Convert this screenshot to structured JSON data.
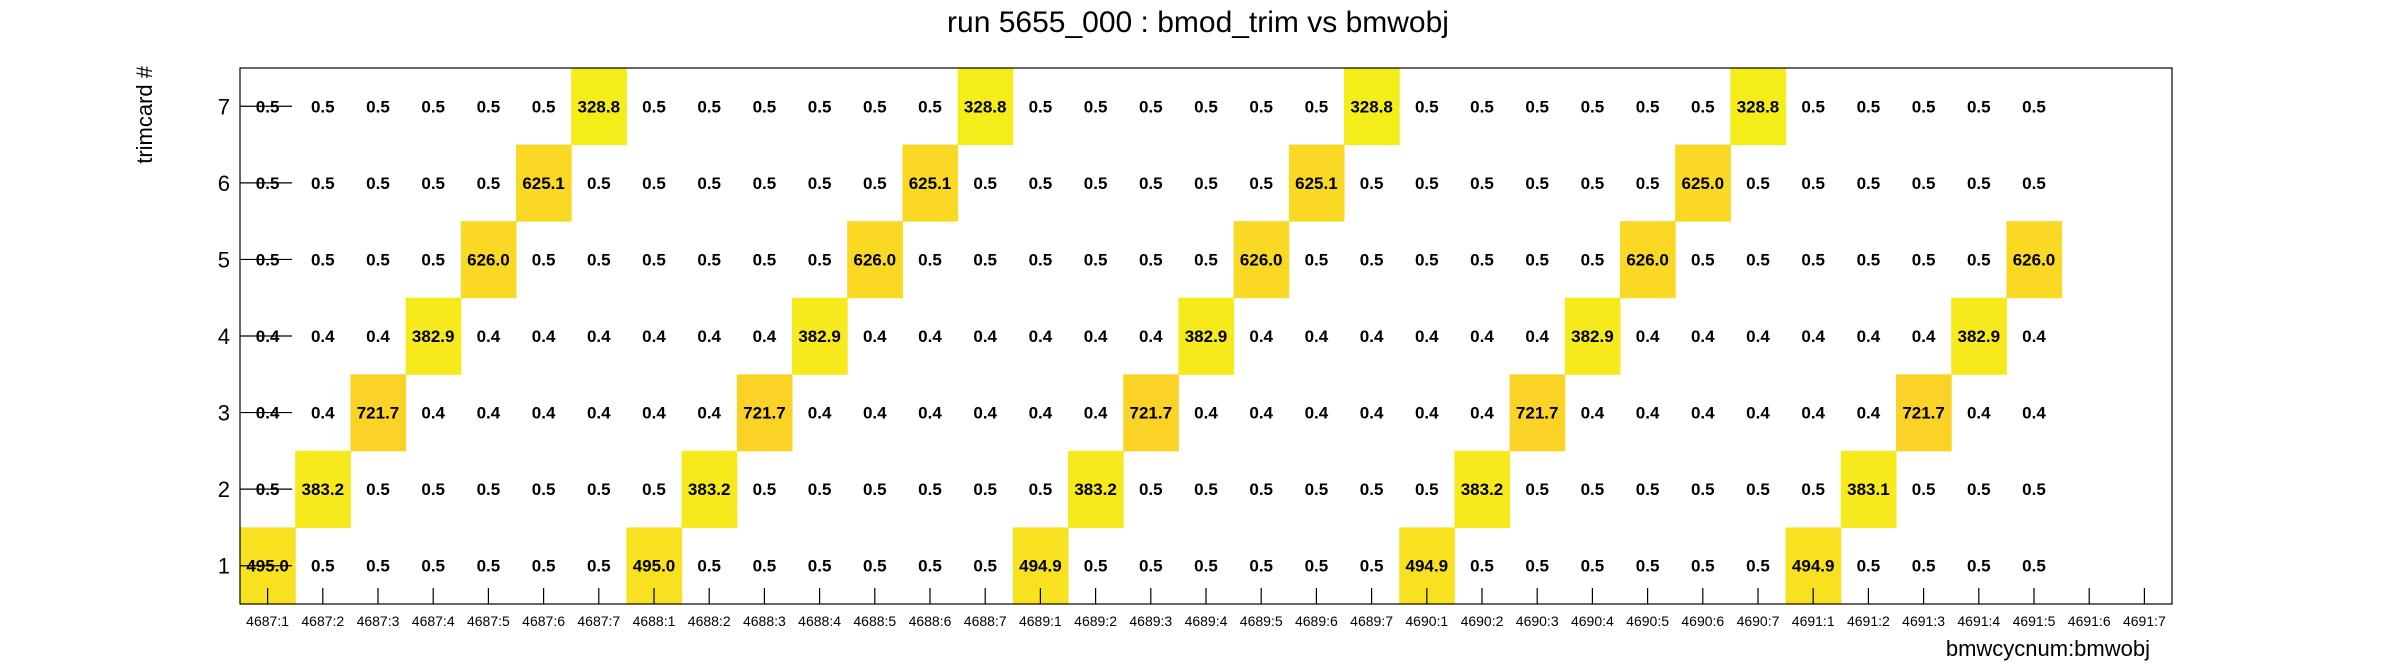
{
  "chart_data": {
    "type": "heatmap",
    "title": "run 5655_000 : bmod_trim vs bmwobj",
    "xlabel": "bmwcycnum:bmwobj",
    "ylabel": "trimcard #",
    "x_categories": [
      "4687:1",
      "4687:2",
      "4687:3",
      "4687:4",
      "4687:5",
      "4687:6",
      "4687:7",
      "4688:1",
      "4688:2",
      "4688:3",
      "4688:4",
      "4688:5",
      "4688:6",
      "4688:7",
      "4689:1",
      "4689:2",
      "4689:3",
      "4689:4",
      "4689:5",
      "4689:6",
      "4689:7",
      "4690:1",
      "4690:2",
      "4690:3",
      "4690:4",
      "4690:5",
      "4690:6",
      "4690:7",
      "4691:1",
      "4691:2",
      "4691:3",
      "4691:4",
      "4691:5",
      "4691:6",
      "4691:7"
    ],
    "y_categories": [
      "1",
      "2",
      "3",
      "4",
      "5",
      "6",
      "7"
    ],
    "value_format_decimals": 1,
    "colormap": {
      "low": "#f5ed1a",
      "high": "#fbd327",
      "empty": "#ffffff"
    },
    "grid": false,
    "rows": [
      {
        "y": "1",
        "values": [
          495.0,
          0.5,
          0.5,
          0.5,
          0.5,
          0.5,
          0.5,
          495.0,
          0.5,
          0.5,
          0.5,
          0.5,
          0.5,
          0.5,
          494.9,
          0.5,
          0.5,
          0.5,
          0.5,
          0.5,
          0.5,
          494.9,
          0.5,
          0.5,
          0.5,
          0.5,
          0.5,
          0.5,
          494.9,
          0.5,
          0.5,
          0.5,
          0.5,
          null,
          null
        ]
      },
      {
        "y": "2",
        "values": [
          0.5,
          383.2,
          0.5,
          0.5,
          0.5,
          0.5,
          0.5,
          0.5,
          383.2,
          0.5,
          0.5,
          0.5,
          0.5,
          0.5,
          0.5,
          383.2,
          0.5,
          0.5,
          0.5,
          0.5,
          0.5,
          0.5,
          383.2,
          0.5,
          0.5,
          0.5,
          0.5,
          0.5,
          0.5,
          383.1,
          0.5,
          0.5,
          0.5,
          null,
          null
        ]
      },
      {
        "y": "3",
        "values": [
          0.4,
          0.4,
          721.7,
          0.4,
          0.4,
          0.4,
          0.4,
          0.4,
          0.4,
          721.7,
          0.4,
          0.4,
          0.4,
          0.4,
          0.4,
          0.4,
          721.7,
          0.4,
          0.4,
          0.4,
          0.4,
          0.4,
          0.4,
          721.7,
          0.4,
          0.4,
          0.4,
          0.4,
          0.4,
          0.4,
          721.7,
          0.4,
          0.4,
          null,
          null
        ]
      },
      {
        "y": "4",
        "values": [
          0.4,
          0.4,
          0.4,
          382.9,
          0.4,
          0.4,
          0.4,
          0.4,
          0.4,
          0.4,
          382.9,
          0.4,
          0.4,
          0.4,
          0.4,
          0.4,
          0.4,
          382.9,
          0.4,
          0.4,
          0.4,
          0.4,
          0.4,
          0.4,
          382.9,
          0.4,
          0.4,
          0.4,
          0.4,
          0.4,
          0.4,
          382.9,
          0.4,
          null,
          null
        ]
      },
      {
        "y": "5",
        "values": [
          0.5,
          0.5,
          0.5,
          0.5,
          626.0,
          0.5,
          0.5,
          0.5,
          0.5,
          0.5,
          0.5,
          626.0,
          0.5,
          0.5,
          0.5,
          0.5,
          0.5,
          0.5,
          626.0,
          0.5,
          0.5,
          0.5,
          0.5,
          0.5,
          0.5,
          626.0,
          0.5,
          0.5,
          0.5,
          0.5,
          0.5,
          0.5,
          626.0,
          null,
          null
        ]
      },
      {
        "y": "6",
        "values": [
          0.5,
          0.5,
          0.5,
          0.5,
          0.5,
          625.1,
          0.5,
          0.5,
          0.5,
          0.5,
          0.5,
          0.5,
          625.1,
          0.5,
          0.5,
          0.5,
          0.5,
          0.5,
          0.5,
          625.1,
          0.5,
          0.5,
          0.5,
          0.5,
          0.5,
          0.5,
          625.0,
          0.5,
          0.5,
          0.5,
          0.5,
          0.5,
          0.5,
          null,
          null
        ]
      },
      {
        "y": "7",
        "values": [
          0.5,
          0.5,
          0.5,
          0.5,
          0.5,
          0.5,
          328.8,
          0.5,
          0.5,
          0.5,
          0.5,
          0.5,
          0.5,
          328.8,
          0.5,
          0.5,
          0.5,
          0.5,
          0.5,
          0.5,
          328.8,
          0.5,
          0.5,
          0.5,
          0.5,
          0.5,
          0.5,
          328.8,
          0.5,
          0.5,
          0.5,
          0.5,
          0.5,
          null,
          null
        ]
      }
    ]
  }
}
